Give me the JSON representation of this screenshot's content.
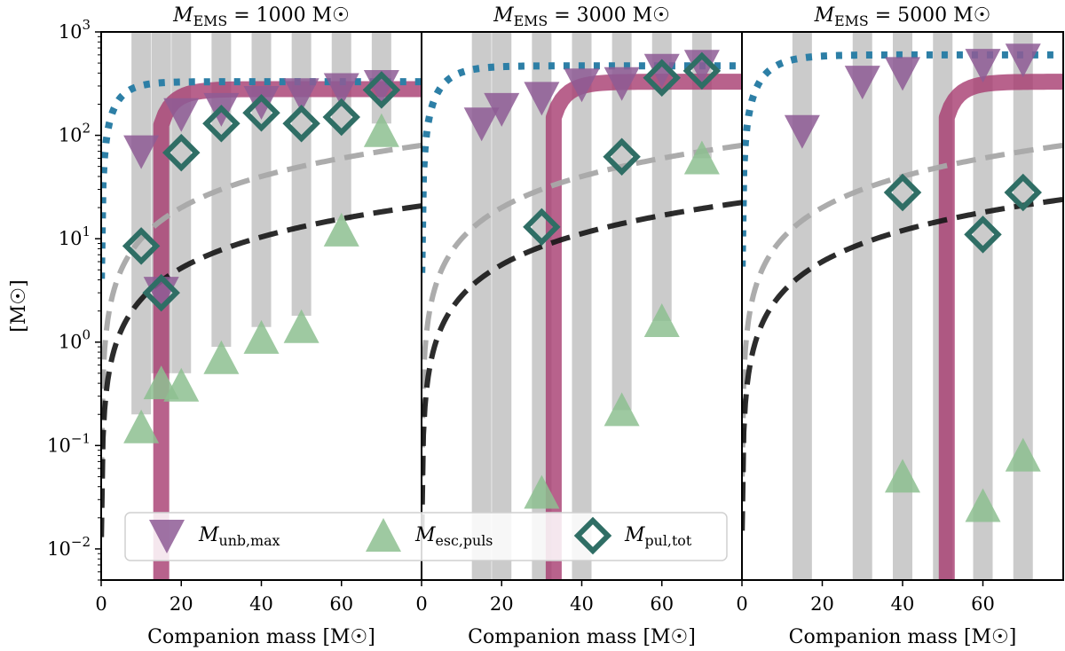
{
  "figure": {
    "ylabel": "[M☉]",
    "legend": {
      "placement": "lower-center",
      "entries": [
        {
          "key": "unb",
          "label": "M",
          "sub": "unb,max",
          "marker": "triangle-down",
          "color": "#8e5c95"
        },
        {
          "key": "esc",
          "label": "M",
          "sub": "esc,puls",
          "marker": "triangle-up",
          "color": "#8dc090"
        },
        {
          "key": "pul",
          "label": "M",
          "sub": "pul,tot",
          "marker": "diamond",
          "color": "#2f6e65"
        }
      ]
    },
    "colors": {
      "band": "#c8c8c8",
      "threshold": "#a63b6f",
      "dotted": "#2d7fa6",
      "dash_light": "#a8a8a8",
      "dash_dark": "#151515"
    }
  },
  "chart_data": [
    {
      "type": "scatter",
      "title_main": "M",
      "title_sub": "EMS",
      "title_rest": " = 1000 M☉",
      "xlabel": "Companion mass [M☉]",
      "xlim": [
        0,
        80
      ],
      "ylim": [
        0.005,
        1000
      ],
      "yscale": "log",
      "xticks": [
        0,
        20,
        40,
        60
      ],
      "yticks": [
        {
          "v": 0.01,
          "base": "10",
          "exp": "−2"
        },
        {
          "v": 0.1,
          "base": "10",
          "exp": "−1"
        },
        {
          "v": 1,
          "base": "10",
          "exp": "0"
        },
        {
          "v": 10,
          "base": "10",
          "exp": "1"
        },
        {
          "v": 100,
          "base": "10",
          "exp": "2"
        },
        {
          "v": 1000,
          "base": "10",
          "exp": "3"
        }
      ],
      "bands": [
        {
          "x": 10,
          "bottom": 0.2
        },
        {
          "x": 15,
          "bottom": 0.5
        },
        {
          "x": 20,
          "bottom": 0.5
        },
        {
          "x": 30,
          "bottom": 0.9
        },
        {
          "x": 40,
          "bottom": 1.4
        },
        {
          "x": 50,
          "bottom": 1.8
        },
        {
          "x": 60,
          "bottom": 15
        },
        {
          "x": 70,
          "bottom": 130
        }
      ],
      "threshold_x": 15,
      "threshold_plateau": 280,
      "dotted_curve": {
        "amp": 330,
        "k": 0.25
      },
      "dash_light_coef": 1.0,
      "dash_dark_coef": 0.26,
      "series": [
        {
          "key": "unb",
          "x": [
            10,
            15,
            20,
            30,
            40,
            50,
            60,
            70
          ],
          "y": [
            70,
            3.0,
            160,
            180,
            210,
            250,
            280,
            300
          ]
        },
        {
          "key": "esc",
          "x": [
            10,
            15,
            20,
            30,
            40,
            50,
            60,
            70
          ],
          "y": [
            0.15,
            0.4,
            0.38,
            0.7,
            1.1,
            1.4,
            12,
            110
          ]
        },
        {
          "key": "pul",
          "x": [
            10,
            15,
            20,
            30,
            40,
            50,
            60,
            70
          ],
          "y": [
            8.5,
            3.0,
            68,
            130,
            165,
            130,
            150,
            275
          ]
        }
      ]
    },
    {
      "type": "scatter",
      "title_main": "M",
      "title_sub": "EMS",
      "title_rest": " = 3000 M☉",
      "xlabel": "Companion mass [M☉]",
      "xlim": [
        0,
        80
      ],
      "ylim": [
        0.005,
        1000
      ],
      "yscale": "log",
      "xticks": [
        0,
        20,
        40,
        60
      ],
      "yticks": [],
      "bands": [
        {
          "x": 15,
          "bottom": 0.005
        },
        {
          "x": 20,
          "bottom": 0.005
        },
        {
          "x": 30,
          "bottom": 0.005
        },
        {
          "x": 40,
          "bottom": 0.005
        },
        {
          "x": 50,
          "bottom": 0.22
        },
        {
          "x": 60,
          "bottom": 1.6
        },
        {
          "x": 70,
          "bottom": 60
        }
      ],
      "threshold_x": 33,
      "threshold_plateau": 330,
      "dotted_curve": {
        "amp": 470,
        "k": 0.2
      },
      "dash_light_coef": 1.0,
      "dash_dark_coef": 0.28,
      "series": [
        {
          "key": "unb",
          "x": [
            15,
            20,
            30,
            40,
            50,
            60,
            70
          ],
          "y": [
            130,
            180,
            230,
            310,
            320,
            430,
            470
          ]
        },
        {
          "key": "esc",
          "x": [
            30,
            50,
            60,
            70
          ],
          "y": [
            0.035,
            0.22,
            1.6,
            60
          ]
        },
        {
          "key": "pul",
          "x": [
            30,
            50,
            60,
            70
          ],
          "y": [
            13,
            62,
            360,
            420
          ]
        }
      ]
    },
    {
      "type": "scatter",
      "title_main": "M",
      "title_sub": "EMS",
      "title_rest": " = 5000 M☉",
      "xlabel": "Companion mass [M☉]",
      "xlim": [
        0,
        80
      ],
      "ylim": [
        0.005,
        1000
      ],
      "yscale": "log",
      "xticks": [
        0,
        20,
        40,
        60
      ],
      "yticks": [],
      "bands": [
        {
          "x": 15,
          "bottom": 0.005
        },
        {
          "x": 30,
          "bottom": 0.005
        },
        {
          "x": 40,
          "bottom": 0.005
        },
        {
          "x": 50,
          "bottom": 0.005
        },
        {
          "x": 60,
          "bottom": 0.005
        },
        {
          "x": 70,
          "bottom": 0.005
        }
      ],
      "threshold_x": 51,
      "threshold_plateau": 330,
      "dotted_curve": {
        "amp": 600,
        "k": 0.18
      },
      "dash_light_coef": 1.0,
      "dash_dark_coef": 0.3,
      "series": [
        {
          "key": "unb",
          "x": [
            15,
            30,
            40,
            60,
            70
          ],
          "y": [
            110,
            330,
            400,
            480,
            540
          ]
        },
        {
          "key": "esc",
          "x": [
            40,
            60,
            70
          ],
          "y": [
            0.05,
            0.026,
            0.08
          ]
        },
        {
          "key": "pul",
          "x": [
            40,
            60,
            70
          ],
          "y": [
            28,
            11,
            28
          ]
        }
      ]
    }
  ]
}
